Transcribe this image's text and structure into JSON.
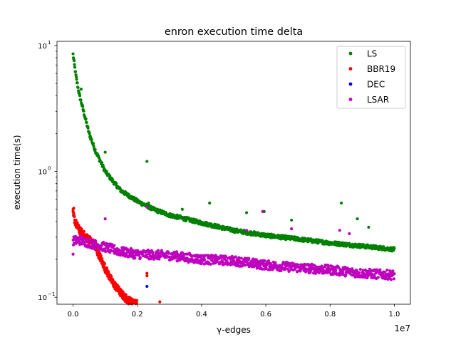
{
  "chart_data": {
    "type": "scatter",
    "title": "enron execution time delta",
    "xlabel": "γ-edges",
    "ylabel": "execution time(s)",
    "x_offset_label": "1e7",
    "x_scale": "linear",
    "y_scale": "log",
    "xlim": [
      -500000,
      10500000
    ],
    "ylim": [
      0.088,
      10.8
    ],
    "x_ticks": [
      {
        "value": 0,
        "label": "0.0"
      },
      {
        "value": 2000000,
        "label": "0.2"
      },
      {
        "value": 4000000,
        "label": "0.4"
      },
      {
        "value": 6000000,
        "label": "0.6"
      },
      {
        "value": 8000000,
        "label": "0.8"
      },
      {
        "value": 10000000,
        "label": "1.0"
      }
    ],
    "y_major_ticks": [
      {
        "value": 0.1,
        "base": "10",
        "exponent": "−1"
      },
      {
        "value": 1,
        "base": "10",
        "exponent": "0"
      },
      {
        "value": 10,
        "base": "10",
        "exponent": "1"
      }
    ],
    "y_minor_ticks": [
      0.2,
      0.3,
      0.4,
      0.5,
      0.6,
      0.7,
      0.8,
      0.9,
      2,
      3,
      4,
      5,
      6,
      7,
      8,
      9
    ],
    "grid": false,
    "legend_position": "top-right",
    "series": [
      {
        "name": "LS",
        "color": "#008000",
        "curve": {
          "x": [
            0,
            50000,
            100000,
            200000,
            300000,
            500000,
            700000,
            1000000,
            1300000,
            1500000,
            2000000,
            2500000,
            3000000,
            4000000,
            5000000,
            6000000,
            7000000,
            8000000,
            9000000,
            10000000
          ],
          "y": [
            8.5,
            6.8,
            5.5,
            4.0,
            3.2,
            2.0,
            1.45,
            1.0,
            0.8,
            0.7,
            0.58,
            0.5,
            0.45,
            0.39,
            0.34,
            0.31,
            0.29,
            0.27,
            0.255,
            0.24
          ]
        },
        "outliers": {
          "x": [
            250000,
            1000000,
            2300000,
            2350000,
            3400000,
            4250000,
            5400000,
            5950000,
            6800000,
            8350000,
            8850000,
            9200000
          ],
          "y": [
            4.5,
            1.42,
            1.2,
            0.56,
            0.5,
            0.56,
            0.47,
            0.48,
            0.41,
            0.56,
            0.42,
            0.36
          ]
        }
      },
      {
        "name": "BBR19",
        "color": "#ff0000",
        "curve": {
          "x": [
            0,
            100000,
            200000,
            300000,
            400000,
            500000,
            600000,
            800000,
            1000000,
            1200000,
            1400000,
            1600000,
            1800000,
            2000000
          ],
          "y": [
            0.45,
            0.38,
            0.34,
            0.32,
            0.3,
            0.29,
            0.27,
            0.22,
            0.17,
            0.135,
            0.115,
            0.1,
            0.092,
            0.088
          ]
        },
        "outliers": {
          "x": [
            0,
            20000,
            2300000,
            2300000,
            2700000
          ],
          "y": [
            0.5,
            0.51,
            0.155,
            0.148,
            0.092
          ]
        }
      },
      {
        "name": "DEC",
        "color": "#0000ff",
        "curve": {
          "x": [],
          "y": []
        },
        "outliers": {
          "x": [
            2300000
          ],
          "y": [
            0.122
          ]
        }
      },
      {
        "name": "LSAR",
        "color": "#bf00bf",
        "curve": {
          "x": [
            0,
            200000,
            500000,
            1000000,
            1500000,
            2000000,
            3000000,
            4000000,
            5000000,
            6000000,
            7000000,
            8000000,
            9000000,
            10000000
          ],
          "y": [
            0.28,
            0.285,
            0.27,
            0.25,
            0.23,
            0.22,
            0.215,
            0.2,
            0.195,
            0.18,
            0.172,
            0.165,
            0.155,
            0.15
          ]
        },
        "outliers": {
          "x": [
            0,
            1000000,
            2300000,
            5400000,
            5900000,
            6800000,
            8300000,
            8600000
          ],
          "y": [
            0.22,
            0.42,
            0.52,
            0.34,
            0.48,
            0.35,
            0.34,
            0.32
          ]
        }
      }
    ]
  }
}
